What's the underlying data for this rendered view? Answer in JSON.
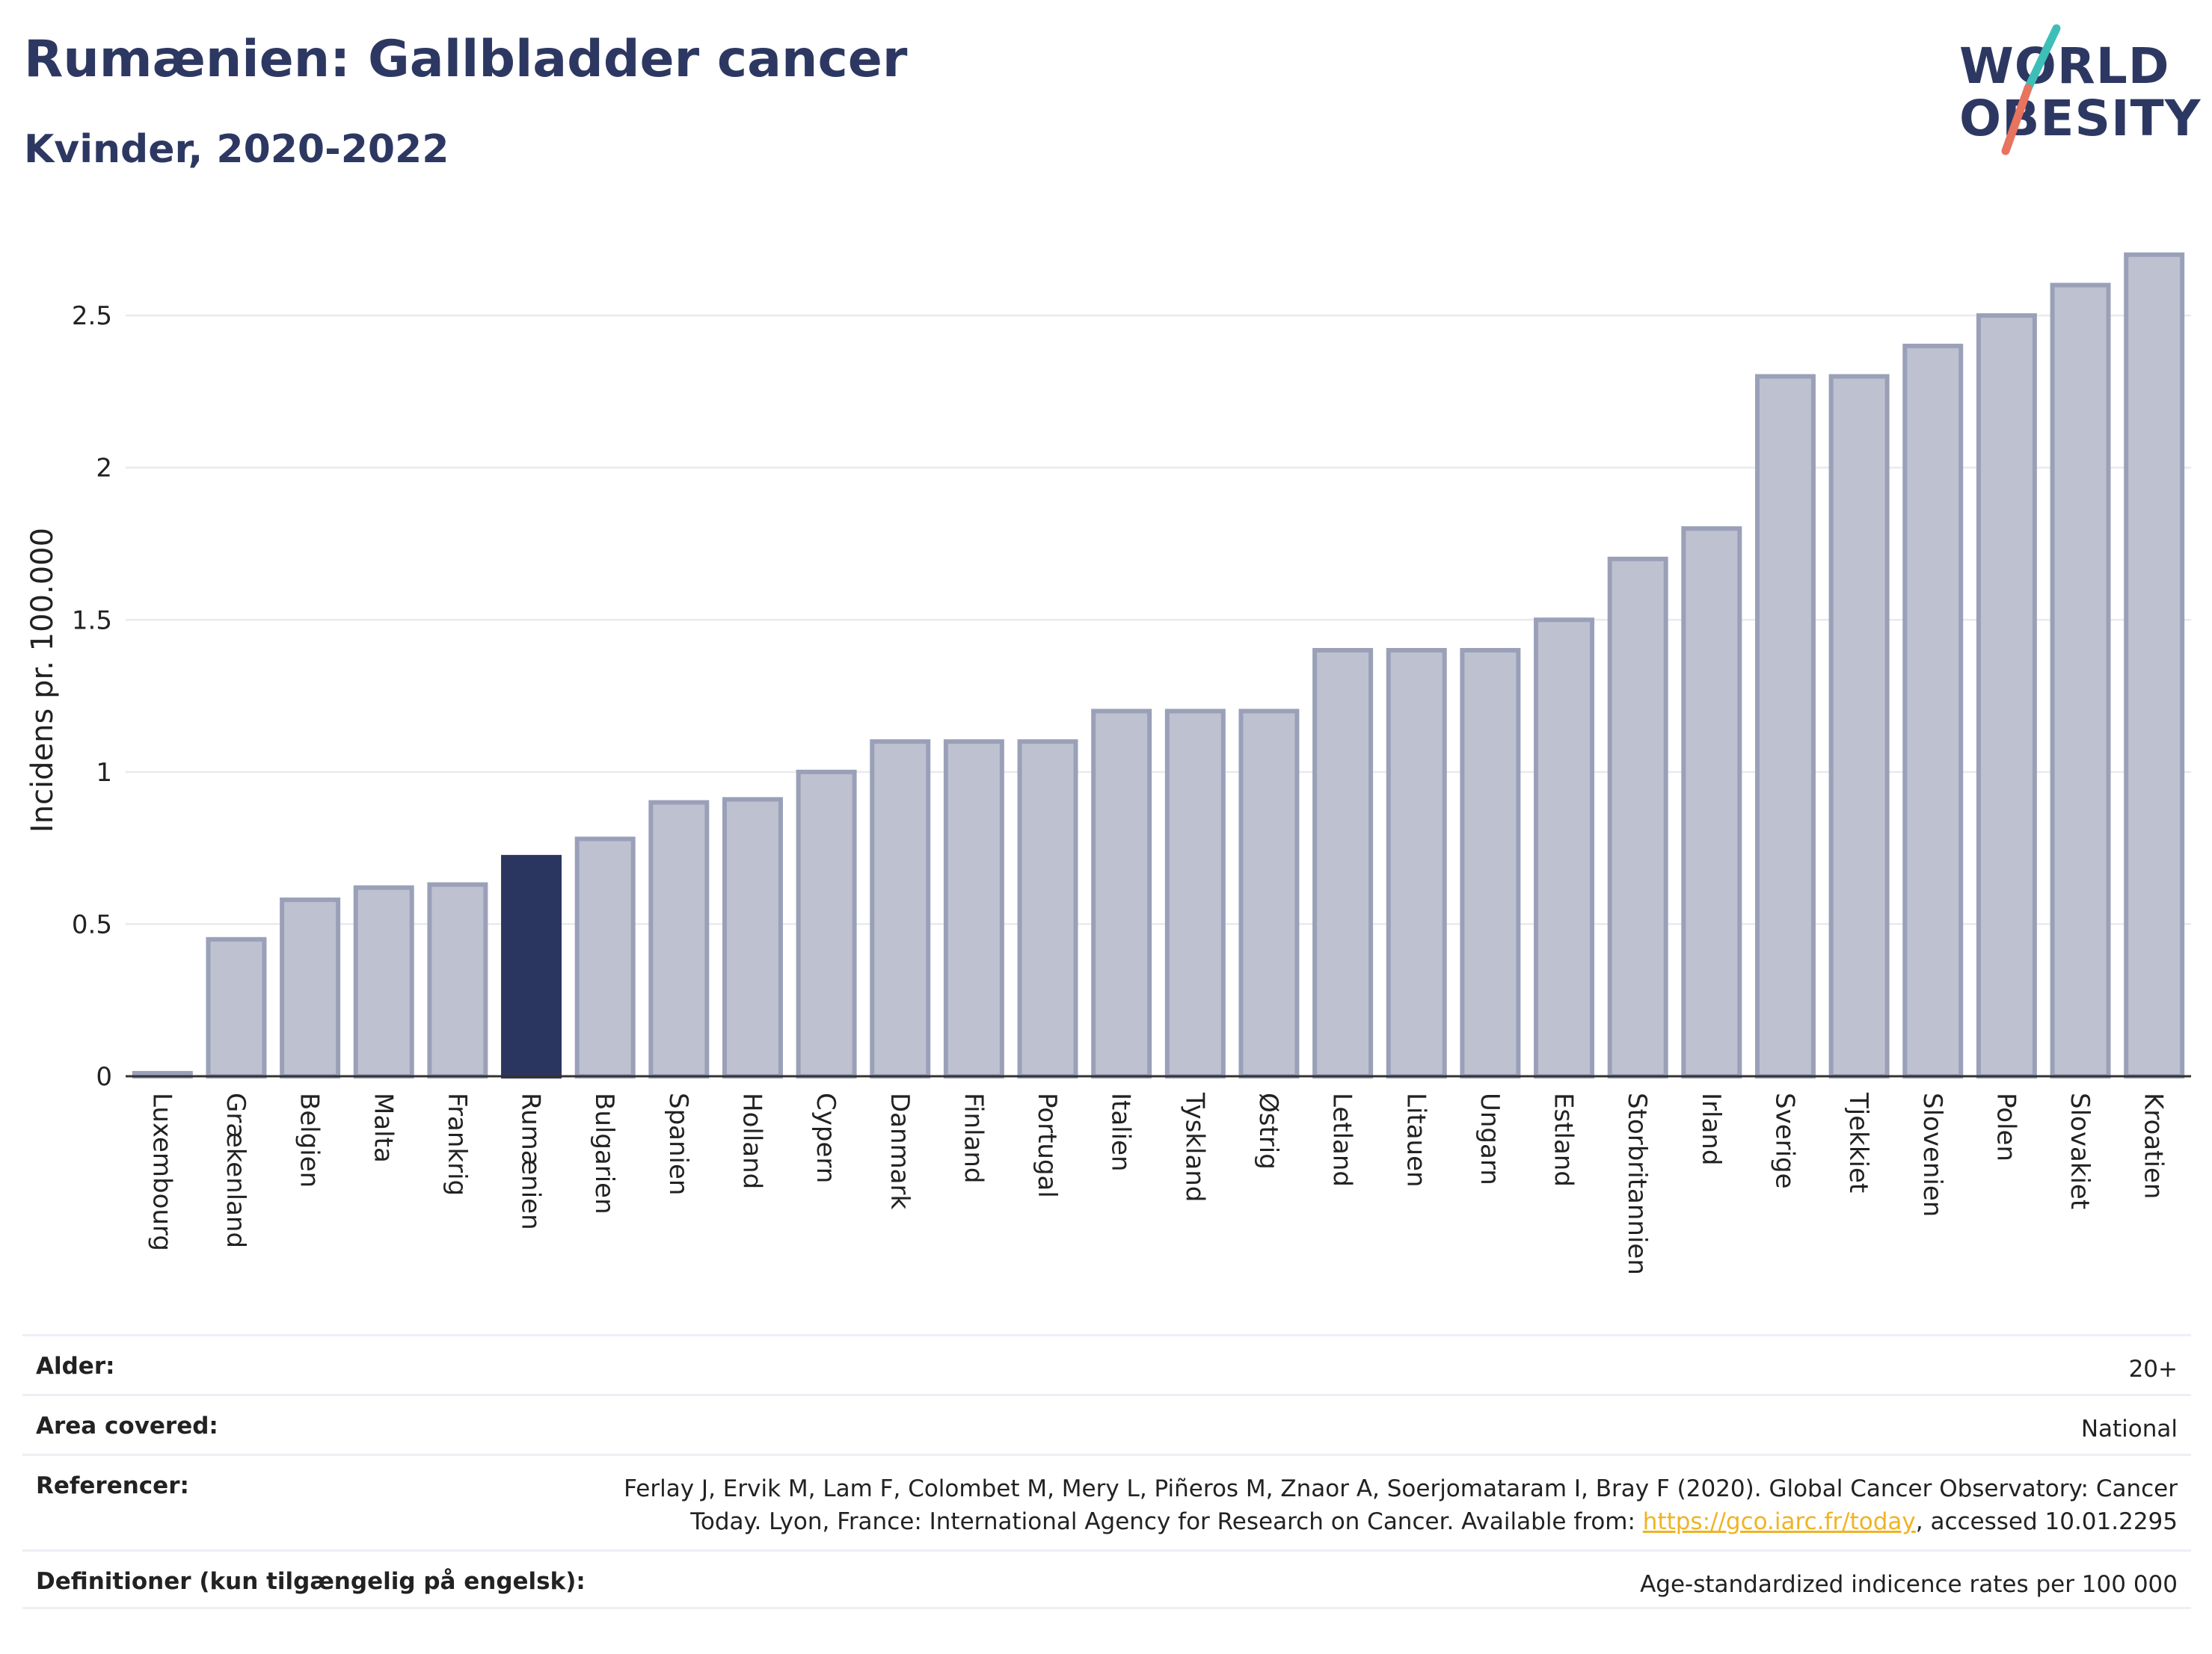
{
  "header": {
    "title": "Rumænien: Gallbladder cancer",
    "subtitle": "Kvinder, 2020-2022"
  },
  "logo": {
    "line1": "WORLD",
    "line2": "OBESITY",
    "colors": {
      "navy": "#2d3862",
      "teal": "#3dbfb8",
      "coral": "#e8735f"
    }
  },
  "colors": {
    "bar_fill": "#bec1cf",
    "bar_stroke": "#9aa0b8",
    "highlight_fill": "#2b3660",
    "grid": "#e8eaef",
    "axis": "#333333"
  },
  "chart_data": {
    "type": "bar",
    "ylabel": "Incidens pr. 100.000",
    "ylim": [
      0,
      2.8
    ],
    "yticks": [
      {
        "value": 0,
        "label": "0"
      },
      {
        "value": 0.5,
        "label": "0.5"
      },
      {
        "value": 1,
        "label": "1"
      },
      {
        "value": 1.5,
        "label": "1.5"
      },
      {
        "value": 2,
        "label": "2"
      },
      {
        "value": 2.5,
        "label": "2.5"
      }
    ],
    "grid": true,
    "highlight": "Rumænien",
    "categories": [
      "Luxembourg",
      "Grækenland",
      "Belgien",
      "Malta",
      "Frankrig",
      "Rumænien",
      "Bulgarien",
      "Spanien",
      "Holland",
      "Cypern",
      "Danmark",
      "Finland",
      "Portugal",
      "Italien",
      "Tyskland",
      "Østrig",
      "Letland",
      "Litauen",
      "Ungarn",
      "Estland",
      "Storbritannien",
      "Irland",
      "Sverige",
      "Tjekkiet",
      "Slovenien",
      "Polen",
      "Slovakiet",
      "Kroatien"
    ],
    "values": [
      0.01,
      0.45,
      0.58,
      0.62,
      0.63,
      0.72,
      0.78,
      0.9,
      0.91,
      1.0,
      1.1,
      1.1,
      1.1,
      1.2,
      1.2,
      1.2,
      1.4,
      1.4,
      1.4,
      1.5,
      1.7,
      1.8,
      2.3,
      2.3,
      2.4,
      2.5,
      2.6,
      2.7
    ]
  },
  "meta": {
    "alder": {
      "label": "Alder:",
      "value": "20+"
    },
    "area": {
      "label": "Area covered:",
      "value": "National"
    },
    "ref": {
      "label": "Referencer:",
      "line1": "Ferlay J, Ervik M, Lam F, Colombet M, Mery L, Piñeros M, Znaor A, Soerjomataram I, Bray F (2020). Global Cancer Observatory: Cancer",
      "line2_prefix": "Today. Lyon, France: International Agency for Research on Cancer. Available from: ",
      "link": "https://gco.iarc.fr/today",
      "line2_suffix": ", accessed 10.01.2295"
    },
    "def": {
      "label": "Definitioner (kun tilgængelig på engelsk):",
      "value": "Age-standardized indicence rates per 100 000"
    }
  }
}
